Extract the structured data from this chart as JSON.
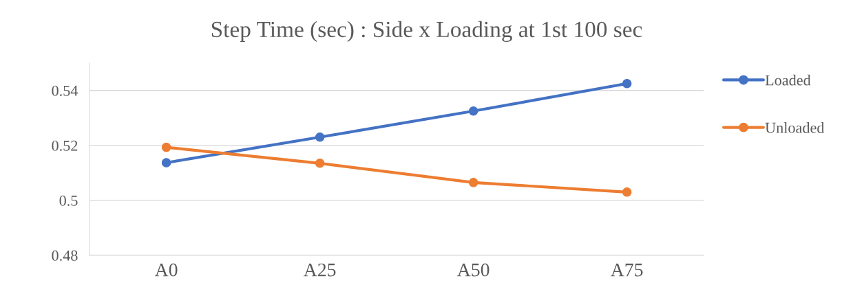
{
  "chart_data": {
    "type": "line",
    "title": "Step Time (sec) : Side x Loading at 1st 100 sec",
    "categories": [
      "A0",
      "A25",
      "A50",
      "A75"
    ],
    "series": [
      {
        "name": "Loaded",
        "color": "#4472c4",
        "values": [
          0.5137,
          0.523,
          0.5325,
          0.5425
        ]
      },
      {
        "name": "Unloaded",
        "color": "#ed7d31",
        "values": [
          0.5193,
          0.5135,
          0.5065,
          0.503
        ]
      }
    ],
    "ylim": [
      0.48,
      0.55
    ],
    "yticks": [
      0.48,
      0.5,
      0.52,
      0.54
    ],
    "grid": "y",
    "legend": "right",
    "marker": "circle",
    "line_style": "solid"
  }
}
